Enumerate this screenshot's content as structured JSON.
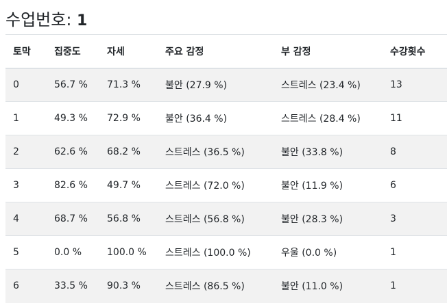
{
  "page": {
    "title_label": "수업번호:",
    "title_number": "1"
  },
  "table": {
    "headers": [
      "토막",
      "집중도",
      "자세",
      "주요 감정",
      "부 감정",
      "수강횟수"
    ],
    "rows": [
      [
        "0",
        "56.7 %",
        "71.3 %",
        "불안 (27.9 %)",
        "스트레스 (23.4 %)",
        "13"
      ],
      [
        "1",
        "49.3 %",
        "72.9 %",
        "불안 (36.4 %)",
        "스트레스 (28.4 %)",
        "11"
      ],
      [
        "2",
        "62.6 %",
        "68.2 %",
        "스트레스 (36.5 %)",
        "불안 (33.8 %)",
        "8"
      ],
      [
        "3",
        "82.6 %",
        "49.7 %",
        "스트레스 (72.0 %)",
        "불안 (11.9 %)",
        "6"
      ],
      [
        "4",
        "68.7 %",
        "56.8 %",
        "스트레스 (56.8 %)",
        "불안 (28.3 %)",
        "3"
      ],
      [
        "5",
        "0.0 %",
        "100.0 %",
        "스트레스 (100.0 %)",
        "우울 (0.0 %)",
        "1"
      ],
      [
        "6",
        "33.5 %",
        "90.3 %",
        "스트레스 (86.5 %)",
        "불안 (11.0 %)",
        "1"
      ]
    ]
  },
  "colors": {
    "stripe": "#f2f2f2",
    "border": "#dee2e6",
    "text": "#212529"
  }
}
